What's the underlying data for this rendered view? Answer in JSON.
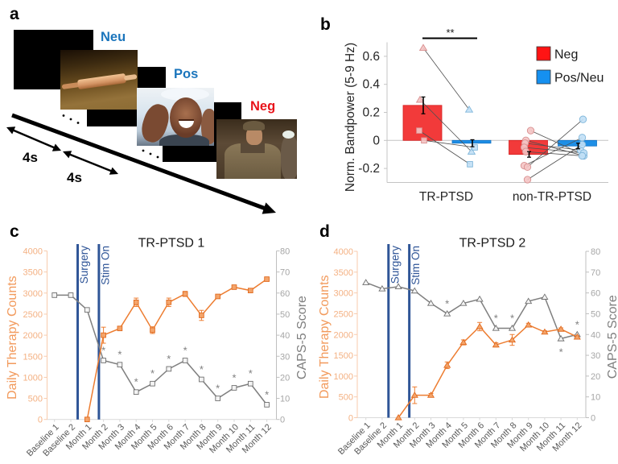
{
  "panel_labels": {
    "a": "a",
    "b": "b",
    "c": "c",
    "d": "d"
  },
  "panel_a": {
    "stimuli": [
      {
        "label": "Neu",
        "color": "#1B75BC",
        "subject": "rolling pin"
      },
      {
        "label": "Pos",
        "color": "#1B75BC",
        "subject": "laughing child in water"
      },
      {
        "label": "Neg",
        "color": "#E8141B",
        "subject": "soldiers"
      }
    ],
    "durations": [
      "4s",
      "4s"
    ],
    "timeline_icon": "time-arrow"
  },
  "chart_data": [
    {
      "panel": "b",
      "type": "bar",
      "title": "",
      "xlabel": "",
      "ylabel": "Norm. Bandpower (5-9 Hz)",
      "categories": [
        "TR-PTSD",
        "non-TR-PTSD"
      ],
      "ylim": [
        -0.3,
        0.7
      ],
      "yticks": [
        -0.2,
        0,
        0.2,
        0.4,
        0.6
      ],
      "ytick_labels": [
        "-0.2",
        "0",
        "0.2",
        "0.4",
        "0.6"
      ],
      "grid": false,
      "legend": {
        "placement": "top-right"
      },
      "series": [
        {
          "name": "Neg",
          "color": "#F23A3A",
          "point_color": "#F4C4C4",
          "values": [
            0.25,
            -0.1
          ],
          "errors": [
            0.06,
            0.02
          ],
          "points": [
            [
              0.66,
              0.29,
              0.07,
              0.0
            ],
            [
              0.07,
              0.0,
              -0.02,
              -0.05,
              -0.08,
              -0.18,
              -0.19,
              -0.28
            ]
          ]
        },
        {
          "name": "Pos/Neu",
          "color": "#1E8FE6",
          "point_color": "#C2E0F6",
          "values": [
            -0.02,
            -0.04
          ],
          "errors": [
            0.025,
            0.02
          ],
          "points": [
            [
              0.22,
              -0.08,
              -0.17,
              -0.05
            ],
            [
              -0.1,
              -0.11,
              -0.07,
              -0.09,
              -0.11,
              0.02,
              0.15,
              -0.03
            ]
          ]
        }
      ],
      "point_markers": [
        [
          "triangle",
          "triangle",
          "square",
          "square"
        ],
        [
          "circle",
          "circle",
          "circle",
          "circle",
          "circle",
          "circle",
          "circle",
          "circle"
        ]
      ],
      "annotations": [
        {
          "text": "**",
          "between": [
            "TR-PTSD Neg",
            "TR-PTSD Pos/Neu"
          ]
        }
      ]
    },
    {
      "panel": "c",
      "type": "line",
      "title": "TR-PTSD 1",
      "categories": [
        "Baseline 1",
        "Baseline 2",
        "Month 1",
        "Month 2",
        "Month 3",
        "Month 4",
        "Month 5",
        "Month 6",
        "Month 7",
        "Month 8",
        "Month 9",
        "Month 10",
        "Month 11",
        "Month 12"
      ],
      "y_left": {
        "label": "Daily Therapy Counts",
        "lim": [
          0,
          4000
        ],
        "ticks": [
          0,
          500,
          1000,
          1500,
          2000,
          2500,
          3000,
          3500,
          4000
        ],
        "color": "#F29A5C"
      },
      "y_right": {
        "label": "CAPS-5 Score",
        "lim": [
          0,
          80
        ],
        "ticks": [
          0,
          10,
          20,
          30,
          40,
          50,
          60,
          70,
          80
        ],
        "color": "#7F7F7F"
      },
      "grid": false,
      "series": [
        {
          "name": "Daily Therapy Counts",
          "axis": "left",
          "marker": "square",
          "color": "#ED7D31",
          "values": [
            null,
            null,
            0,
            2000,
            2160,
            2780,
            2120,
            2780,
            2980,
            2470,
            2920,
            3140,
            3060,
            3330
          ],
          "errors": [
            null,
            null,
            0,
            190,
            50,
            100,
            80,
            100,
            60,
            120,
            40,
            30,
            30,
            30
          ]
        },
        {
          "name": "CAPS-5 Score",
          "axis": "right",
          "marker": "square",
          "color": "#7F7F7F",
          "values": [
            59,
            59,
            52,
            28,
            26,
            13,
            17,
            24,
            28,
            19,
            10,
            15,
            17,
            7
          ]
        }
      ],
      "events": [
        {
          "label": "Surgery",
          "x": 1.42,
          "color": "#2F5597"
        },
        {
          "label": "Stim On",
          "x": 2.72,
          "color": "#2F5597"
        }
      ],
      "significance": [
        {
          "index": 3,
          "text": "*",
          "position": "above"
        },
        {
          "index": 4,
          "text": "*",
          "position": "above"
        },
        {
          "index": 5,
          "text": "*",
          "position": "above"
        },
        {
          "index": 6,
          "text": "*",
          "position": "above"
        },
        {
          "index": 7,
          "text": "*",
          "position": "above"
        },
        {
          "index": 8,
          "text": "*",
          "position": "above"
        },
        {
          "index": 9,
          "text": "*",
          "position": "above"
        },
        {
          "index": 10,
          "text": "*",
          "position": "above"
        },
        {
          "index": 11,
          "text": "*",
          "position": "above"
        },
        {
          "index": 12,
          "text": "*",
          "position": "above"
        },
        {
          "index": 13,
          "text": "*",
          "position": "above"
        }
      ]
    },
    {
      "panel": "d",
      "type": "line",
      "title": "TR-PTSD 2",
      "categories": [
        "Baseline 1",
        "Baseline 2",
        "Month 1",
        "Month 2",
        "Month 3",
        "Month 4",
        "Month 5",
        "Month 6",
        "Month 7",
        "Month 8",
        "Month 9",
        "Month 10",
        "Month 11",
        "Month 12"
      ],
      "y_left": {
        "label": "Daily Therapy Counts",
        "lim": [
          0,
          4000
        ],
        "ticks": [
          0,
          500,
          1000,
          1500,
          2000,
          2500,
          3000,
          3500,
          4000
        ],
        "color": "#F29A5C"
      },
      "y_right": {
        "label": "CAPS-5 Score",
        "lim": [
          0,
          80
        ],
        "ticks": [
          0,
          10,
          20,
          30,
          40,
          50,
          60,
          70,
          80
        ],
        "color": "#7F7F7F"
      },
      "grid": false,
      "series": [
        {
          "name": "Daily Therapy Counts",
          "axis": "left",
          "marker": "triangle",
          "color": "#ED7D31",
          "values": [
            null,
            null,
            0,
            540,
            540,
            1260,
            1810,
            2190,
            1750,
            1870,
            2230,
            2060,
            2130,
            1940
          ],
          "errors": [
            null,
            null,
            0,
            200,
            40,
            80,
            60,
            100,
            50,
            130,
            40,
            30,
            30,
            30
          ]
        },
        {
          "name": "CAPS-5 Score",
          "axis": "right",
          "marker": "triangle",
          "color": "#7F7F7F",
          "values": [
            65,
            62,
            63,
            61,
            55,
            50,
            55,
            57,
            43,
            43,
            56,
            58,
            38,
            40
          ]
        }
      ],
      "events": [
        {
          "label": "Surgery",
          "x": 1.39,
          "color": "#2F5597"
        },
        {
          "label": "Stim On",
          "x": 2.67,
          "color": "#2F5597"
        }
      ],
      "significance": [
        {
          "index": 5,
          "text": "*",
          "position": "above"
        },
        {
          "index": 8,
          "text": "*",
          "position": "above"
        },
        {
          "index": 9,
          "text": "*",
          "position": "above"
        },
        {
          "index": 12,
          "text": "*",
          "position": "below"
        },
        {
          "index": 13,
          "text": "*",
          "position": "above"
        }
      ]
    }
  ]
}
